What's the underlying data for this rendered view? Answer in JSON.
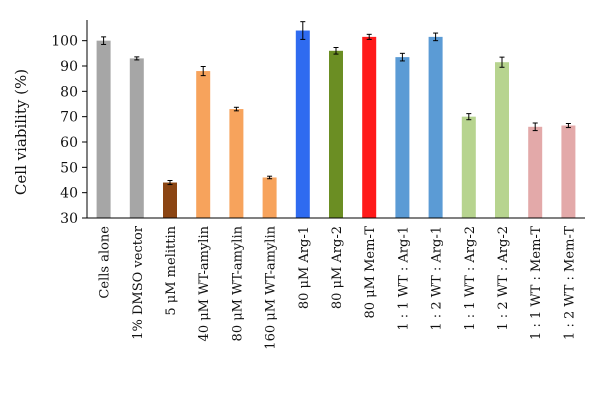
{
  "chart_data": {
    "type": "bar",
    "title": "",
    "xlabel": "",
    "ylabel": "Cell viability (%)",
    "ylim": [
      30,
      105
    ],
    "yticks": [
      30,
      40,
      50,
      60,
      70,
      80,
      90,
      100
    ],
    "grid": false,
    "legend": "none",
    "categories": [
      "Cells alone",
      "1% DMSO vector",
      "5 μM melittin",
      "40 μM WT-amylin",
      "80 μM WT-amylin",
      "160 μM WT-amylin",
      "80 μM Arg-1",
      "80 μM Arg-2",
      "80 μM Mem-T",
      "1 : 1 WT : Arg-1",
      "1 : 2 WT : Arg-1",
      "1 : 1 WT : Arg-2",
      "1 : 2 WT : Arg-2",
      "1 : 1 WT : Mem-T",
      "1 : 2 WT : Mem-T"
    ],
    "values": [
      100,
      93,
      44,
      88,
      73,
      46,
      104,
      96,
      101.5,
      93.5,
      101.5,
      70,
      91.5,
      66,
      66.5
    ],
    "errors": [
      1.5,
      0.6,
      0.8,
      1.8,
      0.7,
      0.5,
      3.5,
      1.3,
      1.0,
      1.5,
      1.5,
      1.2,
      2.0,
      1.5,
      0.8
    ],
    "colors": [
      "#a6a6a6",
      "#a6a6a6",
      "#8b4513",
      "#f7a35c",
      "#f7a35c",
      "#f7a35c",
      "#2f6bf0",
      "#6b8e23",
      "#ff1a1a",
      "#5b9bd5",
      "#5b9bd5",
      "#b7d48f",
      "#b7d48f",
      "#e3a9a9",
      "#e3a9a9"
    ]
  }
}
